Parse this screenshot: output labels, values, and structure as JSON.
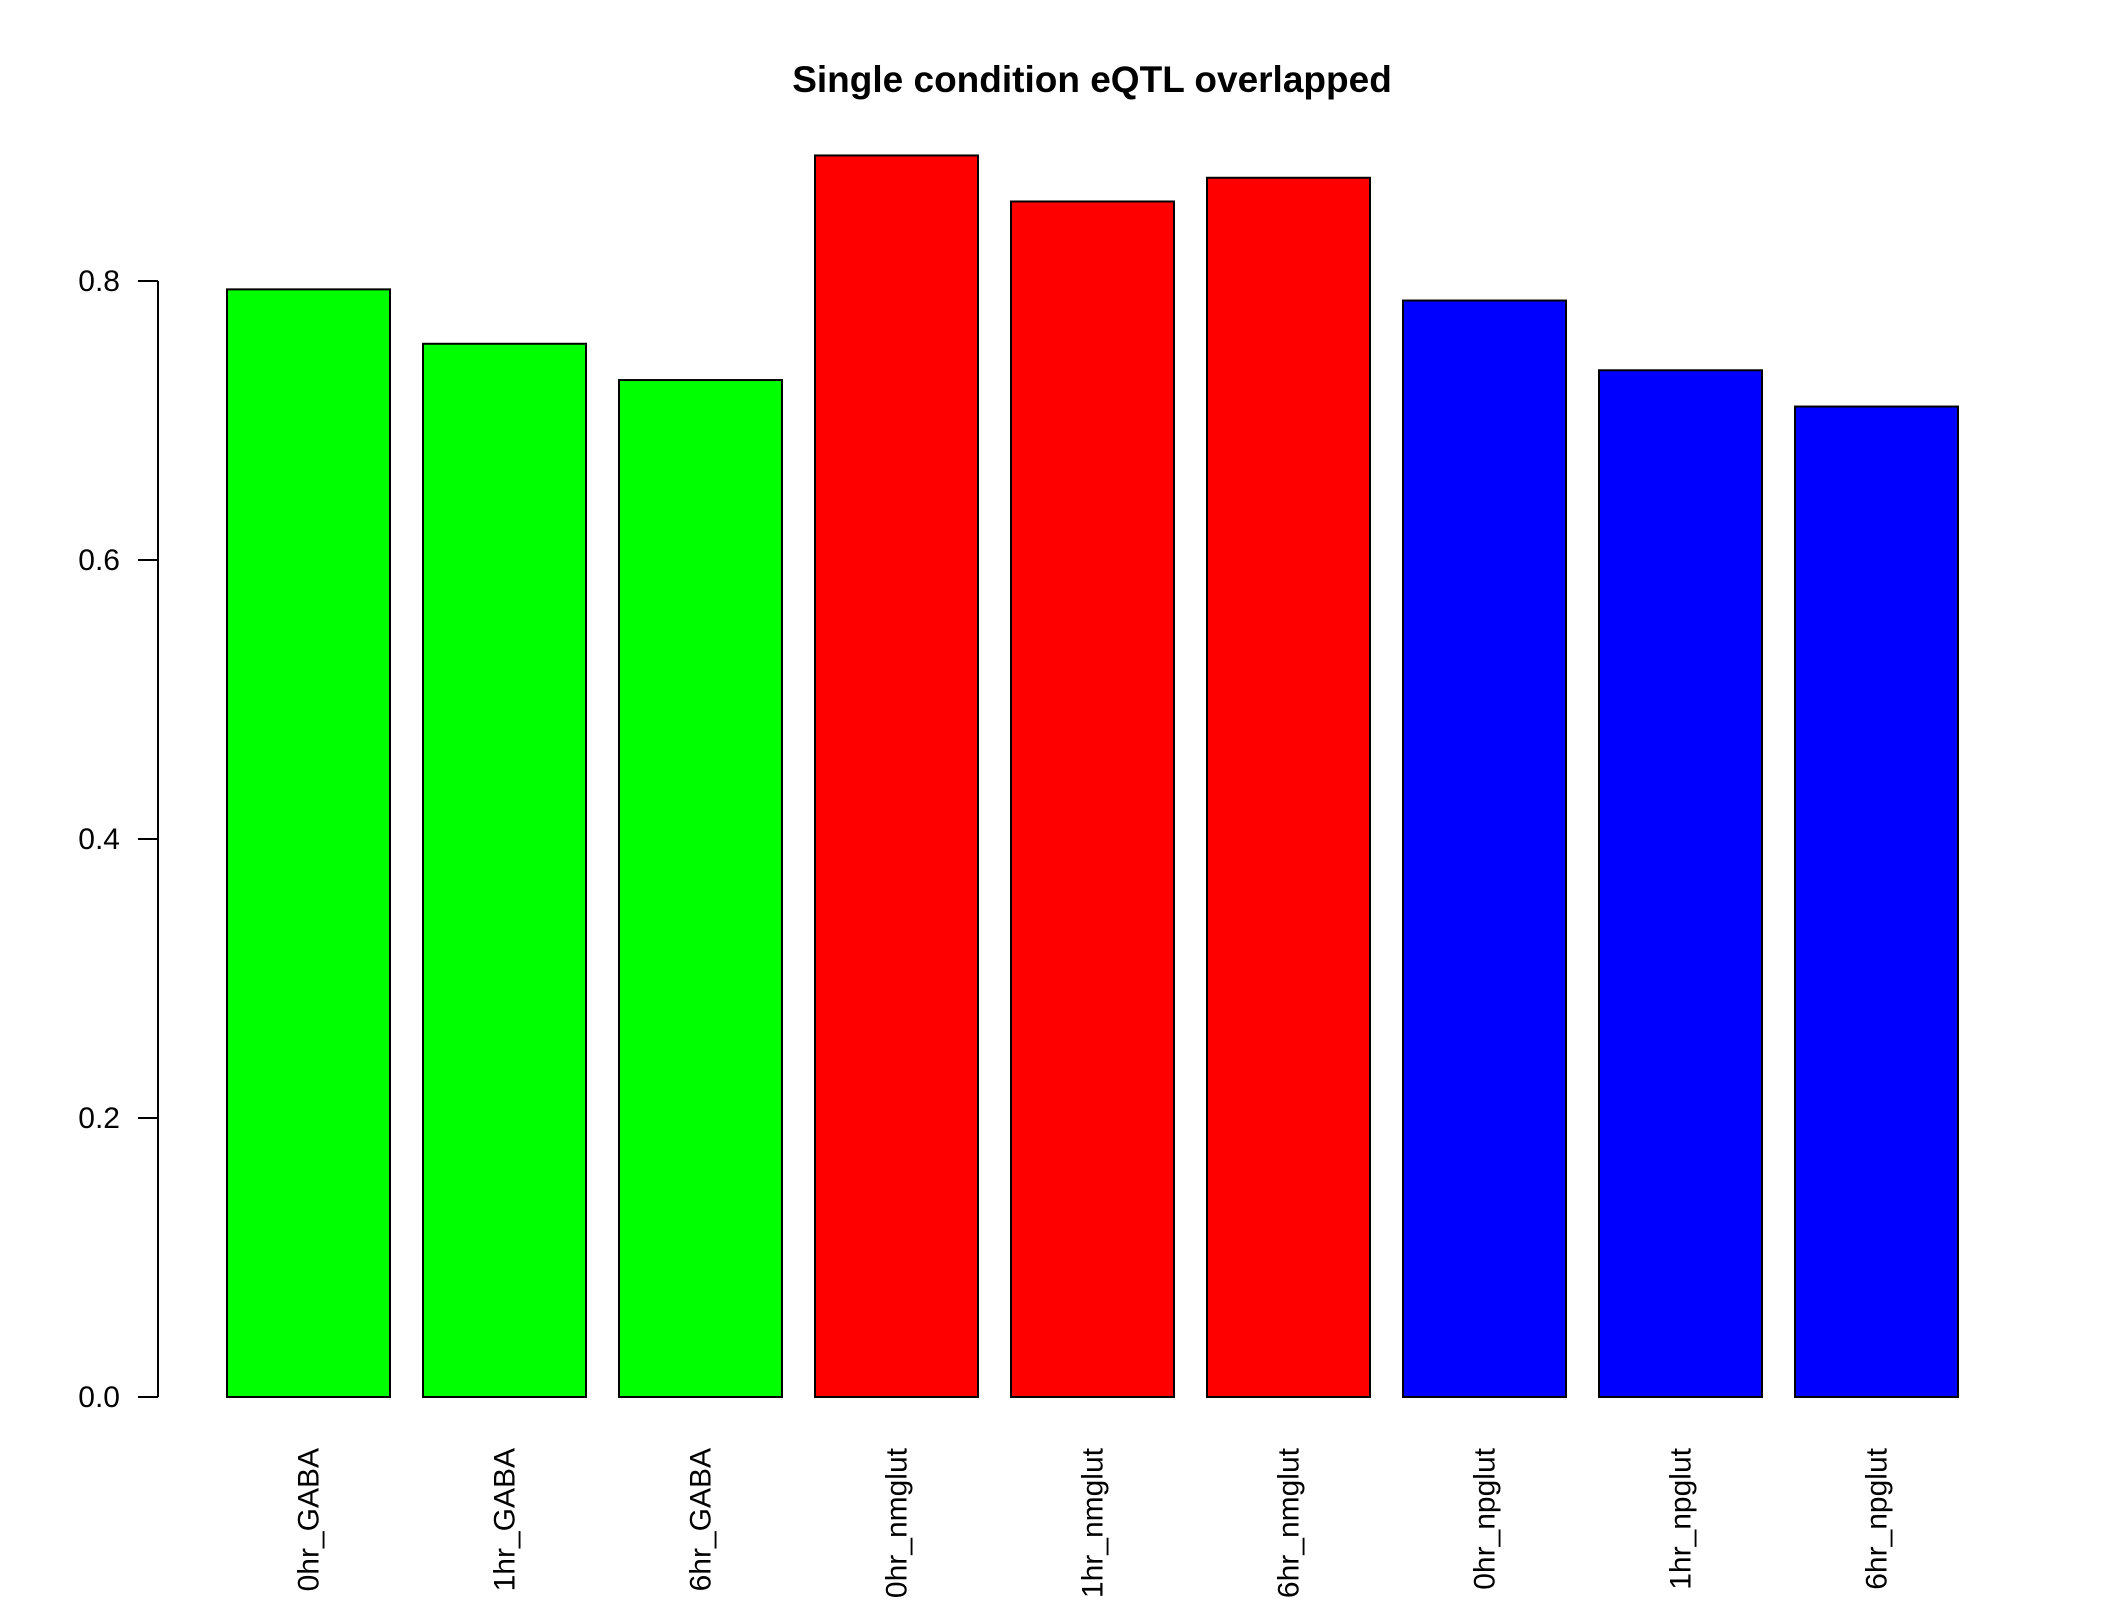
{
  "chart_data": {
    "type": "bar",
    "title": "Single condition eQTL overlapped",
    "xlabel": "",
    "ylabel": "",
    "categories": [
      "0hr_GABA",
      "1hr_GABA",
      "6hr_GABA",
      "0hr_nmglut",
      "1hr_nmglut",
      "6hr_nmglut",
      "0hr_npglut",
      "1hr_npglut",
      "6hr_npglut"
    ],
    "values": [
      0.794,
      0.755,
      0.729,
      0.89,
      0.857,
      0.874,
      0.786,
      0.736,
      0.71
    ],
    "colors": [
      "#00ff00",
      "#00ff00",
      "#00ff00",
      "#ff0000",
      "#ff0000",
      "#ff0000",
      "#0000ff",
      "#0000ff",
      "#0000ff"
    ],
    "yticks": [
      "0.0",
      "0.2",
      "0.4",
      "0.6",
      "0.8"
    ],
    "ylim": [
      0,
      0.9
    ],
    "grid": false,
    "legend": "none"
  }
}
